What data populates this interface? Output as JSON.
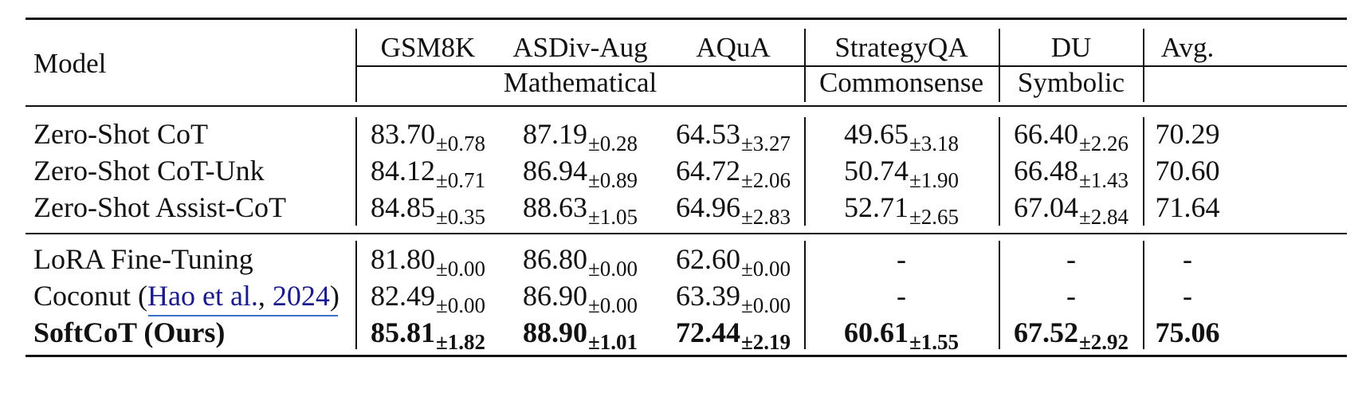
{
  "header": {
    "model_label": "Model",
    "columns": [
      "GSM8K",
      "ASDiv-Aug",
      "AQuA",
      "StrategyQA",
      "DU",
      "Avg."
    ],
    "groups": [
      "Mathematical",
      "Commonsense",
      "Symbolic"
    ]
  },
  "rows": [
    {
      "model": "Zero-Shot CoT",
      "bold": false,
      "cells": [
        {
          "v": "83.70",
          "sd": "±0.78"
        },
        {
          "v": "87.19",
          "sd": "±0.28"
        },
        {
          "v": "64.53",
          "sd": "±3.27"
        },
        {
          "v": "49.65",
          "sd": "±3.18"
        },
        {
          "v": "66.40",
          "sd": "±2.26"
        },
        {
          "v": "70.29",
          "sd": ""
        }
      ]
    },
    {
      "model": "Zero-Shot CoT-Unk",
      "bold": false,
      "cells": [
        {
          "v": "84.12",
          "sd": "±0.71"
        },
        {
          "v": "86.94",
          "sd": "±0.89"
        },
        {
          "v": "64.72",
          "sd": "±2.06"
        },
        {
          "v": "50.74",
          "sd": "±1.90"
        },
        {
          "v": "66.48",
          "sd": "±1.43"
        },
        {
          "v": "70.60",
          "sd": ""
        }
      ]
    },
    {
      "model": "Zero-Shot Assist-CoT",
      "bold": false,
      "cells": [
        {
          "v": "84.85",
          "sd": "±0.35"
        },
        {
          "v": "88.63",
          "sd": "±1.05"
        },
        {
          "v": "64.96",
          "sd": "±2.83"
        },
        {
          "v": "52.71",
          "sd": "±2.65"
        },
        {
          "v": "67.04",
          "sd": "±2.84"
        },
        {
          "v": "71.64",
          "sd": ""
        }
      ]
    },
    {
      "model": "LoRA Fine-Tuning",
      "bold": false,
      "cells": [
        {
          "v": "81.80",
          "sd": "±0.00"
        },
        {
          "v": "86.80",
          "sd": "±0.00"
        },
        {
          "v": "62.60",
          "sd": "±0.00"
        },
        {
          "v": "-",
          "sd": ""
        },
        {
          "v": "-",
          "sd": ""
        },
        {
          "v": "-",
          "sd": ""
        }
      ]
    },
    {
      "model": "Coconut (",
      "cite_name": "Hao et al.",
      "cite_sep": ", ",
      "cite_year": "2024",
      "cite_close": ")",
      "bold": false,
      "cells": [
        {
          "v": "82.49",
          "sd": "±0.00"
        },
        {
          "v": "86.90",
          "sd": "±0.00"
        },
        {
          "v": "63.39",
          "sd": "±0.00"
        },
        {
          "v": "-",
          "sd": ""
        },
        {
          "v": "-",
          "sd": ""
        },
        {
          "v": "-",
          "sd": ""
        }
      ]
    },
    {
      "model": "SoftCoT (Ours)",
      "bold": true,
      "cells": [
        {
          "v": "85.81",
          "sd": "±1.82"
        },
        {
          "v": "88.90",
          "sd": "±1.01"
        },
        {
          "v": "72.44",
          "sd": "±2.19"
        },
        {
          "v": "60.61",
          "sd": "±1.55"
        },
        {
          "v": "67.52",
          "sd": "±2.92"
        },
        {
          "v": "75.06",
          "sd": ""
        }
      ]
    }
  ]
}
